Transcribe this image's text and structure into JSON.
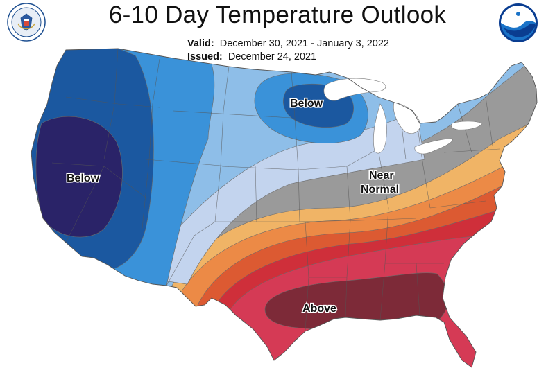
{
  "title": "6-10 Day Temperature Outlook",
  "valid_label": "Valid:",
  "valid_dates": "December 30, 2021 - January 3, 2022",
  "issued_label": "Issued:",
  "issued_date": "December 24, 2021",
  "logos": {
    "left": "department-of-commerce-seal",
    "right": "noaa-logo"
  },
  "regions": {
    "west_below": "Below",
    "north_below": "Below",
    "near_normal_line1": "Near",
    "near_normal_line2": "Normal",
    "south_above": "Above"
  },
  "colors": {
    "below_deep": "#2a2368",
    "below_strong": "#1b58a0",
    "below_mod": "#3a92d9",
    "below_light": "#8ebee8",
    "below_faint": "#c3d4ee",
    "near_normal": "#9a9a9a",
    "above_faint": "#f0b466",
    "above_light": "#ec8a46",
    "above_mod": "#dc5a32",
    "above_strong": "#cf2f3a",
    "above_deep": "#d53a55",
    "above_max": "#7d2a38"
  }
}
